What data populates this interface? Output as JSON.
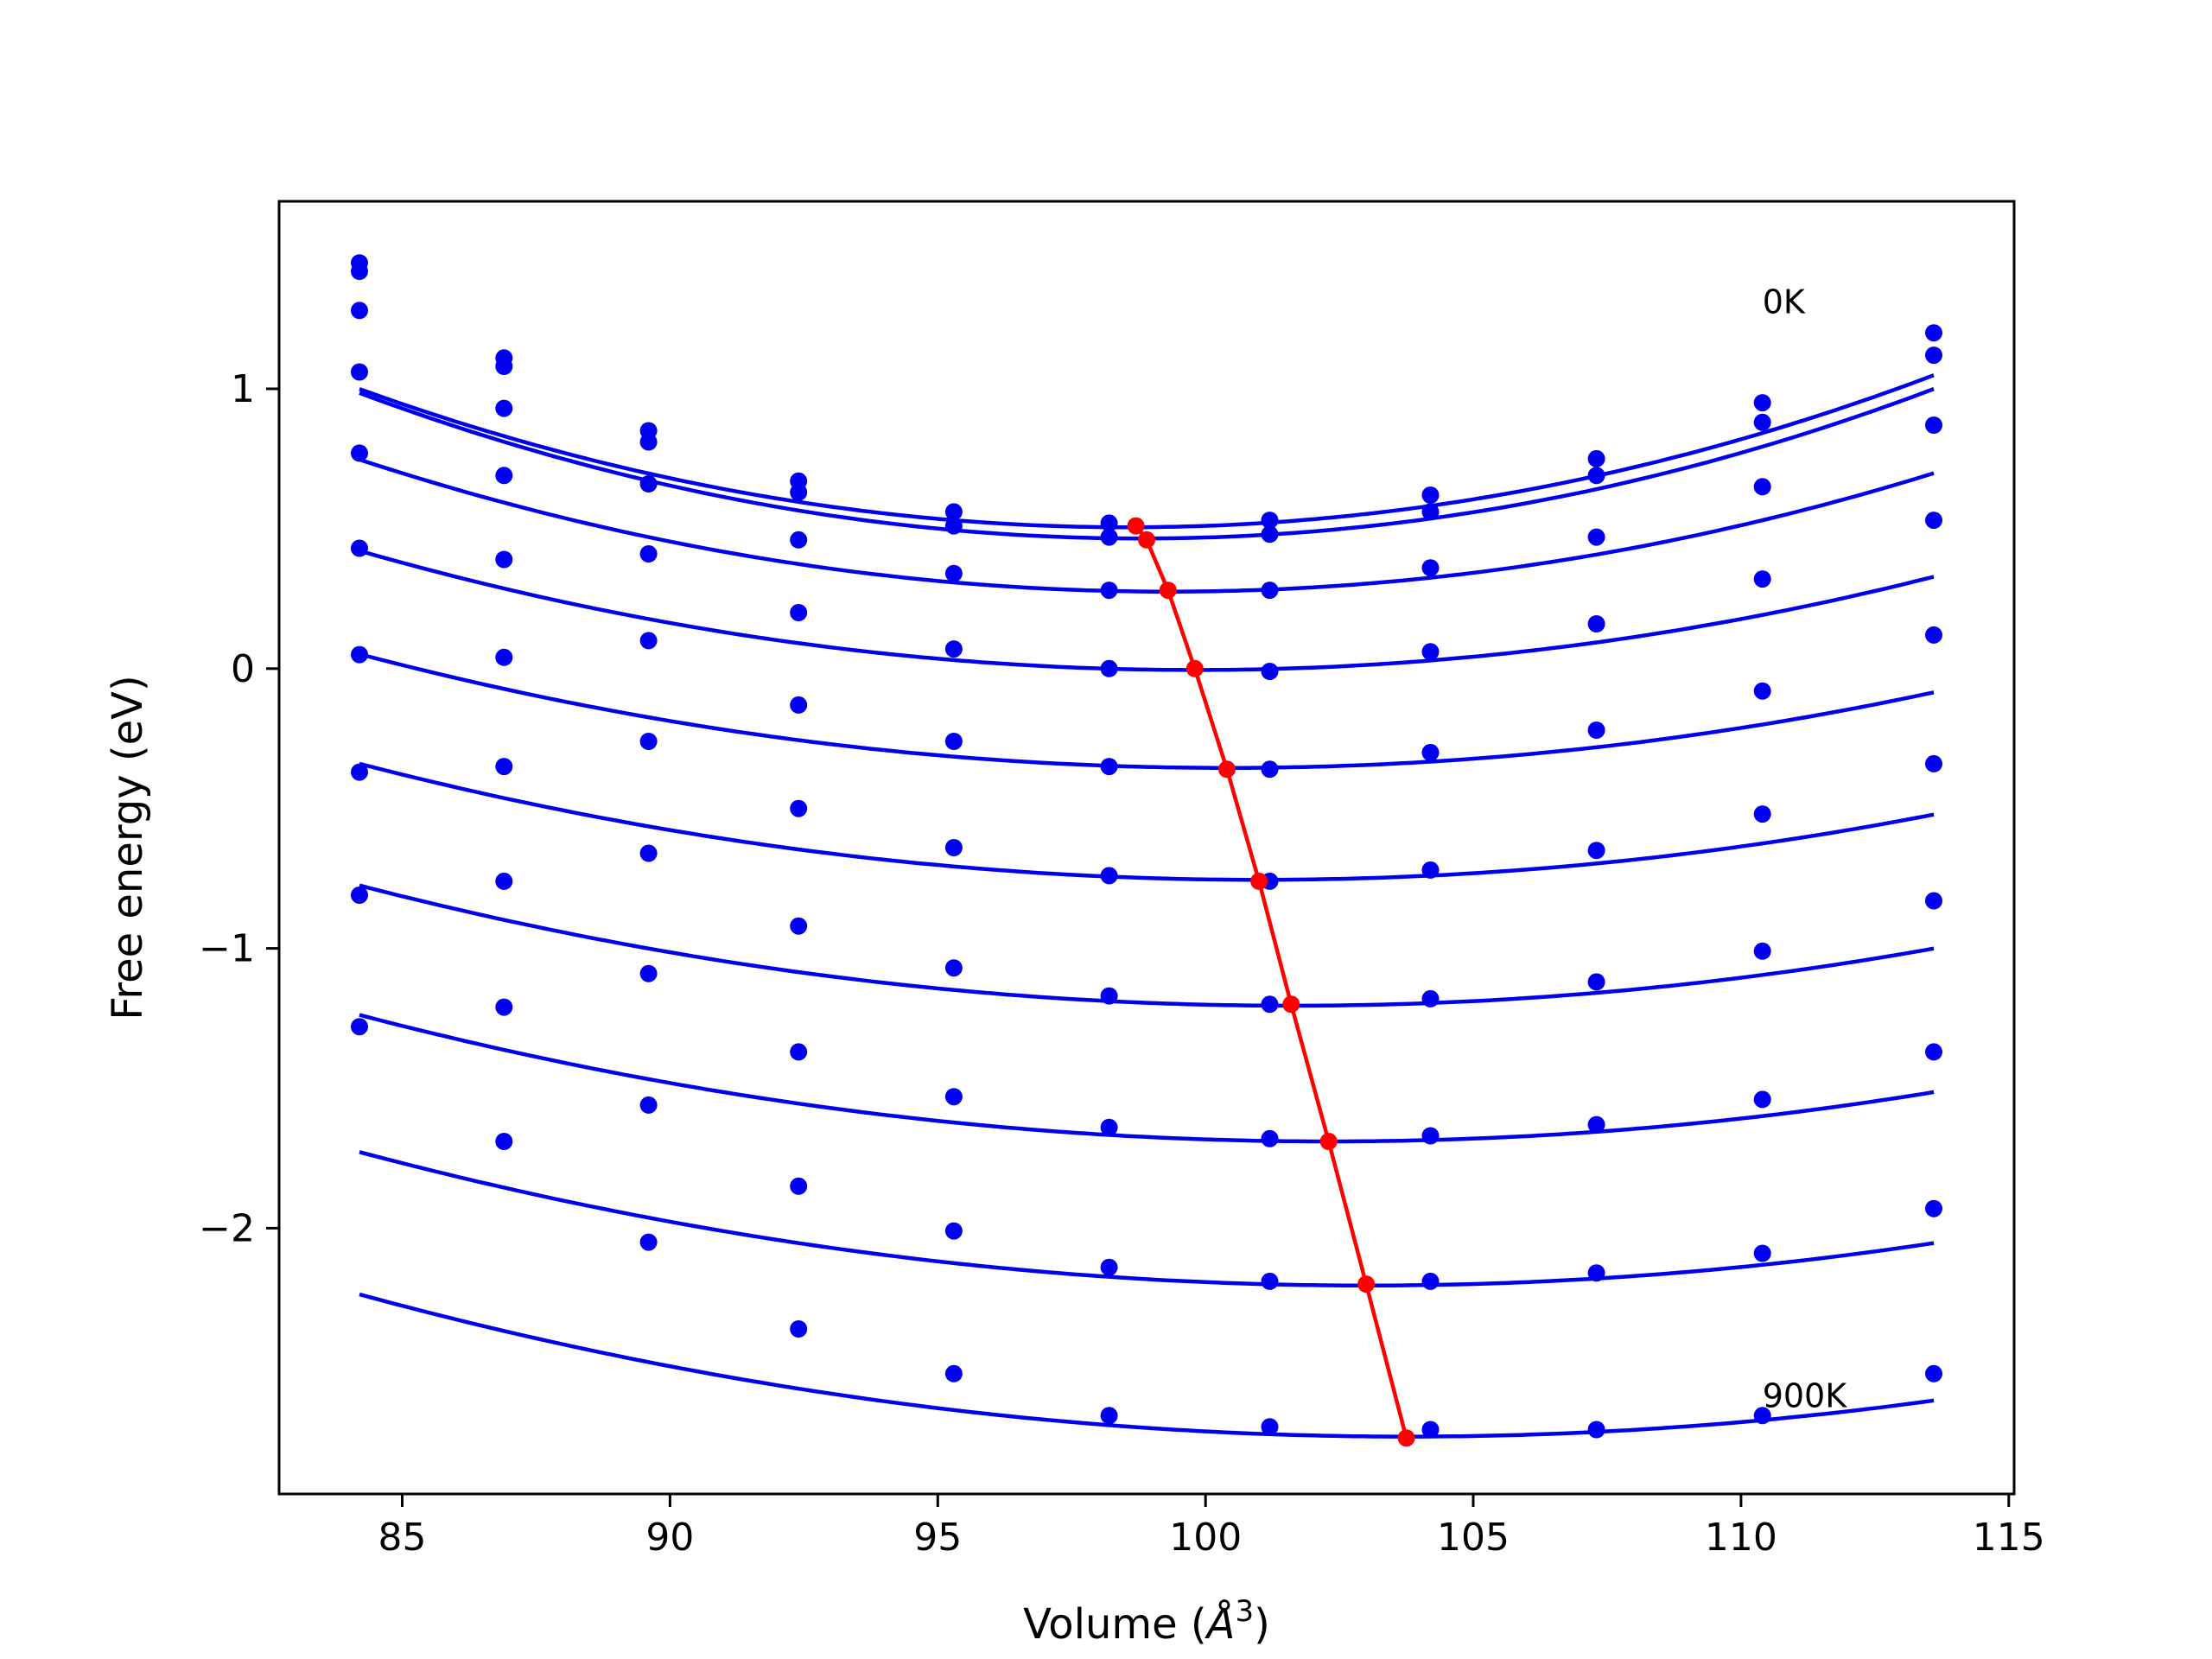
{
  "chart_data": {
    "type": "line",
    "title": "",
    "xlabel": "Volume (",
    "xlabel_symbol": "Å",
    "xlabel_sup": "3",
    "xlabel_close": ")",
    "ylabel": "Free energy (eV)",
    "xlim": [
      82.7,
      115.1
    ],
    "ylim": [
      -2.95,
      1.67
    ],
    "xticks": [
      85,
      90,
      95,
      100,
      105,
      110,
      115
    ],
    "xtick_labels": [
      "85",
      "90",
      "95",
      "100",
      "105",
      "110",
      "115"
    ],
    "yticks": [
      1,
      0,
      -1,
      -2
    ],
    "ytick_labels": [
      "1",
      "0",
      "−1",
      "−2"
    ],
    "grid": false,
    "legend": "none",
    "colors": {
      "curves": "#0000ee",
      "equilibrium": "#ff0000",
      "axes": "#000000"
    },
    "annotations": [
      {
        "text": "0K",
        "x": 110.4,
        "y": 1.27
      },
      {
        "text": "900K",
        "x": 110.4,
        "y": -2.64
      }
    ],
    "x": [
      84.2,
      86.9,
      89.6,
      92.4,
      95.3,
      98.2,
      101.2,
      104.2,
      107.3,
      110.4,
      113.6
    ],
    "fits": [
      {
        "a": 0.0024,
        "v0": 98.55,
        "f0": 0.505
      },
      {
        "a": 0.00244,
        "v0": 98.8,
        "f0": 0.465
      },
      {
        "a": 0.00207,
        "v0": 99.3,
        "f0": 0.275
      },
      {
        "a": 0.00175,
        "v0": 99.8,
        "f0": -0.005
      },
      {
        "a": 0.00155,
        "v0": 100.4,
        "f0": -0.355
      },
      {
        "a": 0.00147,
        "v0": 101.0,
        "f0": -0.755
      },
      {
        "a": 0.00142,
        "v0": 101.6,
        "f0": -1.205
      },
      {
        "a": 0.00138,
        "v0": 102.3,
        "f0": -1.69
      },
      {
        "a": 0.00135,
        "v0": 103.0,
        "f0": -2.205
      },
      {
        "a": 0.00133,
        "v0": 103.75,
        "f0": -2.745
      }
    ],
    "series": [
      {
        "values": [
          1.45,
          1.11,
          0.85,
          0.67,
          0.56,
          0.52,
          0.53,
          0.62,
          0.75,
          0.95,
          1.2
        ]
      },
      {
        "values": [
          1.42,
          1.08,
          0.81,
          0.63,
          0.51,
          0.47,
          0.48,
          0.56,
          0.69,
          0.88,
          1.12
        ]
      },
      {
        "values": [
          1.28,
          0.93,
          0.66,
          0.46,
          0.34,
          0.28,
          0.28,
          0.36,
          0.47,
          0.65,
          0.87
        ]
      },
      {
        "values": [
          1.06,
          0.69,
          0.41,
          0.2,
          0.07,
          0.0,
          -0.01,
          0.06,
          0.16,
          0.32,
          0.53
        ]
      },
      {
        "values": [
          0.77,
          0.39,
          0.1,
          -0.13,
          -0.26,
          -0.35,
          -0.36,
          -0.3,
          -0.22,
          -0.08,
          0.12
        ]
      },
      {
        "values": [
          0.43,
          0.04,
          -0.26,
          -0.5,
          -0.64,
          -0.74,
          -0.76,
          -0.72,
          -0.65,
          -0.52,
          -0.34
        ]
      },
      {
        "values": [
          0.05,
          -0.35,
          -0.66,
          -0.92,
          -1.07,
          -1.17,
          -1.2,
          -1.18,
          -1.12,
          -1.01,
          -0.83
        ]
      },
      {
        "values": [
          -0.37,
          -0.76,
          -1.09,
          -1.37,
          -1.53,
          -1.64,
          -1.68,
          -1.67,
          -1.63,
          -1.54,
          -1.37
        ]
      },
      {
        "values": [
          -0.81,
          -1.21,
          -1.56,
          -1.85,
          -2.01,
          -2.14,
          -2.19,
          -2.19,
          -2.16,
          -2.09,
          -1.93
        ]
      },
      {
        "values": [
          -1.28,
          -1.69,
          -2.05,
          -2.36,
          -2.52,
          -2.67,
          -2.71,
          -2.72,
          -2.72,
          -2.67,
          -2.52
        ]
      }
    ],
    "equilibrium": {
      "x": [
        98.7,
        98.9,
        99.3,
        99.8,
        100.4,
        101.0,
        101.6,
        102.3,
        103.0,
        103.75
      ],
      "y": [
        0.51,
        0.46,
        0.28,
        0.0,
        -0.36,
        -0.76,
        -1.2,
        -1.69,
        -2.2,
        -2.75
      ]
    }
  }
}
